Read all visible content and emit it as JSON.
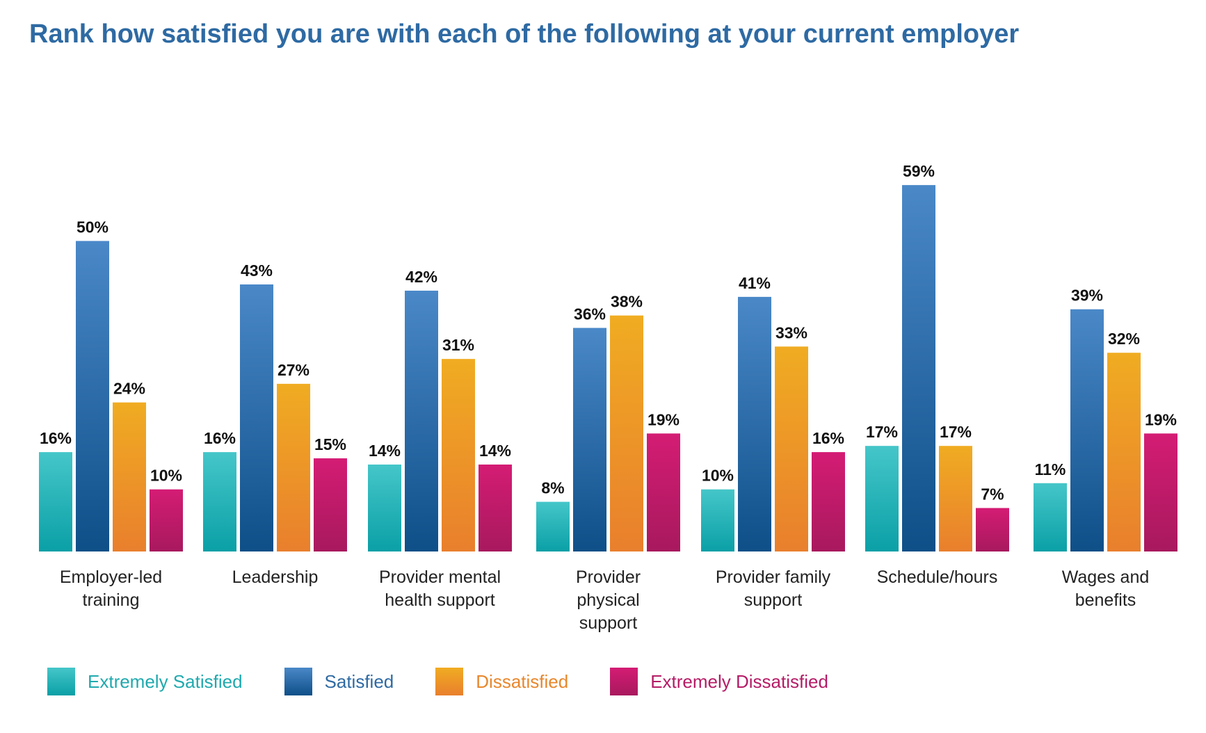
{
  "chart_data": {
    "type": "bar",
    "title": "Rank how satisfied you are with each of the following at your current employer",
    "xlabel": "",
    "ylabel": "",
    "grid": false,
    "legend_position": "bottom",
    "categories": [
      [
        "Employer-led",
        "training"
      ],
      [
        "Leadership"
      ],
      [
        "Provider mental",
        "health support"
      ],
      [
        "Provider",
        "physical",
        "support"
      ],
      [
        "Provider family",
        "support"
      ],
      [
        "Schedule/hours"
      ],
      [
        "Wages and",
        "benefits"
      ]
    ],
    "series": [
      {
        "name": "Extremely Satisfied",
        "values": [
          16,
          16,
          14,
          8,
          10,
          17,
          11
        ],
        "color": "#20b3b8",
        "color_top": "#45c6c9",
        "color_bottom": "#0aa0a6",
        "legend_text_color": "#1fa9ae"
      },
      {
        "name": "Satisfied",
        "values": [
          50,
          43,
          42,
          36,
          41,
          59,
          39
        ],
        "color": "#2f6fb1",
        "color_top": "#4a88c8",
        "color_bottom": "#0e4f88",
        "legend_text_color": "#2e6aa3"
      },
      {
        "name": "Dissatisfied",
        "values": [
          24,
          27,
          31,
          38,
          33,
          17,
          32
        ],
        "color": "#ee9a28",
        "color_top": "#f0ac22",
        "color_bottom": "#e97f2d",
        "legend_text_color": "#e8872c"
      },
      {
        "name": "Extremely Dissatisfied",
        "values": [
          10,
          15,
          14,
          19,
          16,
          7,
          19
        ],
        "color": "#c81d6e",
        "color_top": "#d41c74",
        "color_bottom": "#a8195e",
        "legend_text_color": "#b51c66"
      }
    ],
    "value_suffix": "%",
    "ylim": [
      0,
      60
    ]
  }
}
